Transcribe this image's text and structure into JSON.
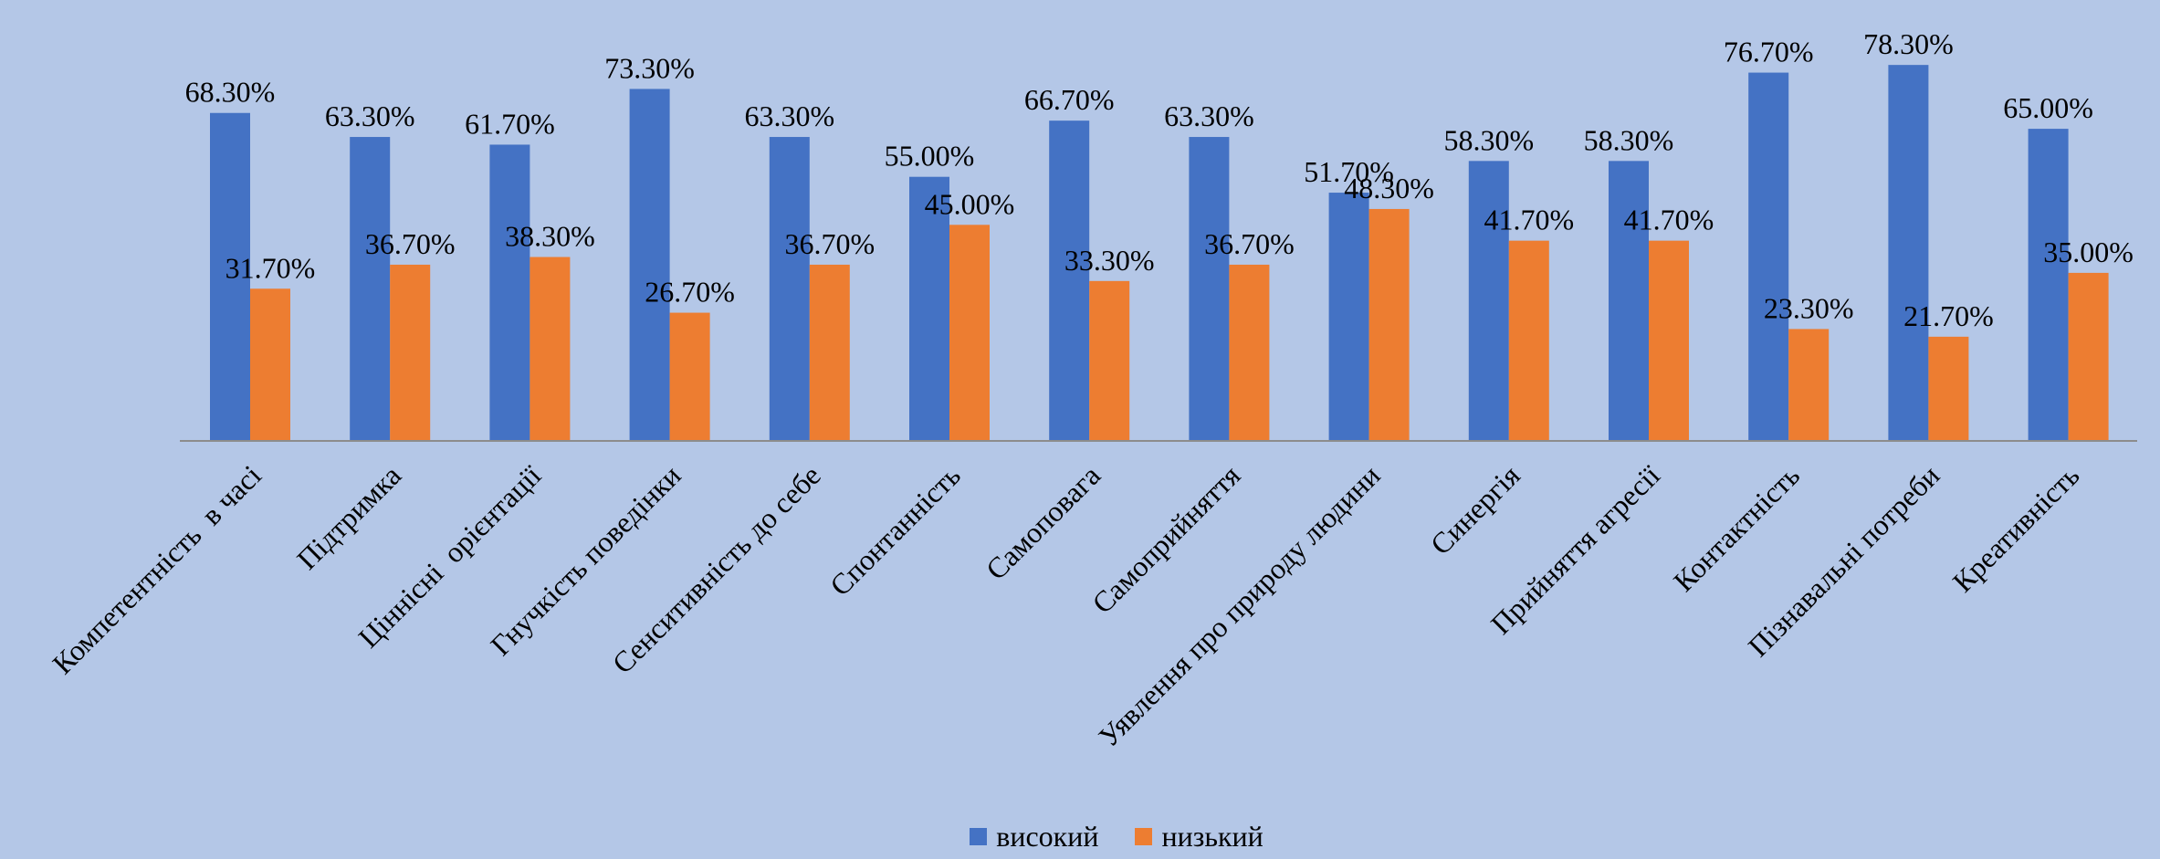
{
  "chart_data": {
    "type": "bar",
    "categories": [
      "Компетентність  в часі",
      "Підтримка",
      "Ціннісні  орієнтації",
      "Гнучкість поведінки",
      "Сенситивність до себе",
      "Спонтанність",
      "Самоповага",
      "Самоприйняття",
      "Уявлення про природу людини",
      "Синергія",
      "Прийняття агресії",
      "Контактність",
      "Пізнавальні потреби",
      "Креативність"
    ],
    "series": [
      {
        "name": "високий",
        "color": "#4472c4",
        "values": [
          68.3,
          63.3,
          61.7,
          73.3,
          63.3,
          55.0,
          66.7,
          63.3,
          51.7,
          58.3,
          58.3,
          76.7,
          78.3,
          65.0
        ],
        "labels": [
          "68.30%",
          "63.30%",
          "61.70%",
          "73.30%",
          "63.30%",
          "55.00%",
          "66.70%",
          "63.30%",
          "51.70%",
          "58.30%",
          "58.30%",
          "76.70%",
          "78.30%",
          "65.00%"
        ]
      },
      {
        "name": "низький",
        "color": "#ed7d31",
        "values": [
          31.7,
          36.7,
          38.3,
          26.7,
          36.7,
          45.0,
          33.3,
          36.7,
          48.3,
          41.7,
          41.7,
          23.3,
          21.7,
          35.0
        ],
        "labels": [
          "31.70%",
          "36.70%",
          "38.30%",
          "26.70%",
          "36.70%",
          "45.00%",
          "33.30%",
          "36.70%",
          "48.30%",
          "41.70%",
          "41.70%",
          "23.30%",
          "21.70%",
          "35.00%"
        ]
      }
    ],
    "ylim": [
      0,
      100
    ],
    "grid": false,
    "legend": "bottom"
  }
}
